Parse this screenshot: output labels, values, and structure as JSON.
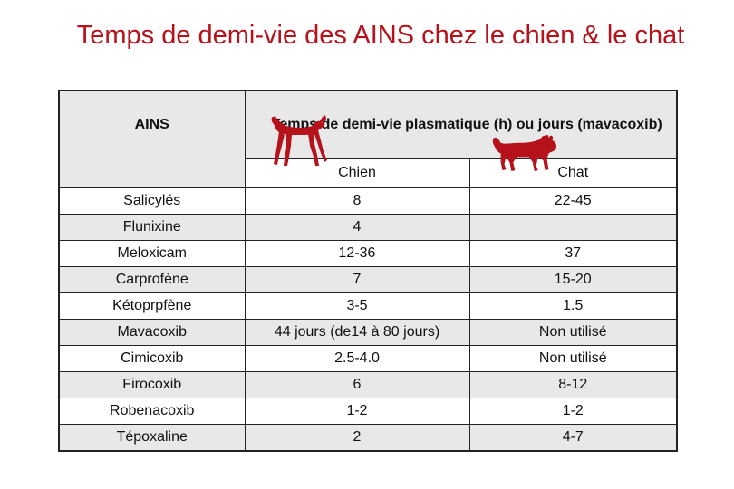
{
  "title": "Temps de demi-vie des AINS chez le chien & le chat",
  "header": {
    "ains": "AINS",
    "temps": "Temps de demi-vie plasmatique (h) ou jours (mavacoxib)",
    "chien": "Chien",
    "chat": "Chat"
  },
  "icons": {
    "dog": "dog-silhouette-icon",
    "cat": "cat-silhouette-icon",
    "color": "#b5121b"
  },
  "rows": [
    {
      "name": "Salicylés",
      "chien": "8",
      "chat": "22-45",
      "shade": false
    },
    {
      "name": "Flunixine",
      "chien": "4",
      "chat": "",
      "shade": true
    },
    {
      "name": "Meloxicam",
      "chien": "12-36",
      "chat": "37",
      "shade": false
    },
    {
      "name": "Carprofène",
      "chien": "7",
      "chat": "15-20",
      "shade": true
    },
    {
      "name": "Kétoprpfène",
      "chien": "3-5",
      "chat": "1.5",
      "shade": false
    },
    {
      "name": "Mavacoxib",
      "chien": "44 jours  (de14 à 80 jours)",
      "chat": "Non utilisé",
      "shade": true
    },
    {
      "name": "Cimicoxib",
      "chien": "2.5-4.0",
      "chat": "Non utilisé",
      "shade": false
    },
    {
      "name": "Firocoxib",
      "chien": "6",
      "chat": "8-12",
      "shade": true
    },
    {
      "name": "Robenacoxib",
      "chien": "1-2",
      "chat": "1-2",
      "shade": false
    },
    {
      "name": "Tépoxaline",
      "chien": "2",
      "chat": "4-7",
      "shade": true
    }
  ]
}
